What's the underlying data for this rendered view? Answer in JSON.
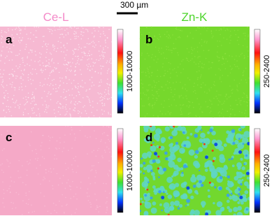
{
  "scale_bar": "300 µm",
  "columns": [
    "Ce-L",
    "Zn-K"
  ],
  "panels": [
    {
      "label": "a",
      "range": "1000-10000"
    },
    {
      "label": "b",
      "range": "250-2400"
    },
    {
      "label": "c",
      "range": "1000-10000"
    },
    {
      "label": "d",
      "range": "250-2400"
    }
  ]
}
